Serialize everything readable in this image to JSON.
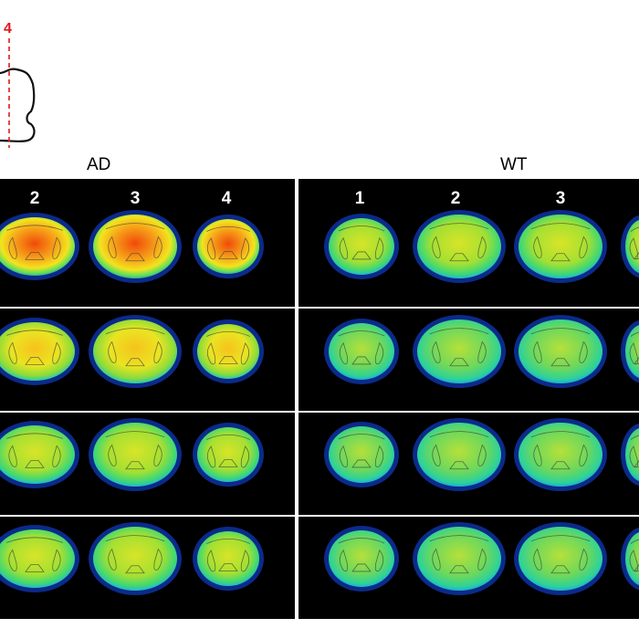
{
  "sketch": {
    "marker_label": "4"
  },
  "groups": [
    {
      "title": "AD",
      "column_labels": [
        "2",
        "3",
        "4"
      ]
    },
    {
      "title": "WT",
      "column_labels": [
        "1",
        "2",
        "3"
      ]
    }
  ],
  "colors": {
    "panel_background": "#000000",
    "marker_line": "#e0191b",
    "colormap": "jet"
  }
}
